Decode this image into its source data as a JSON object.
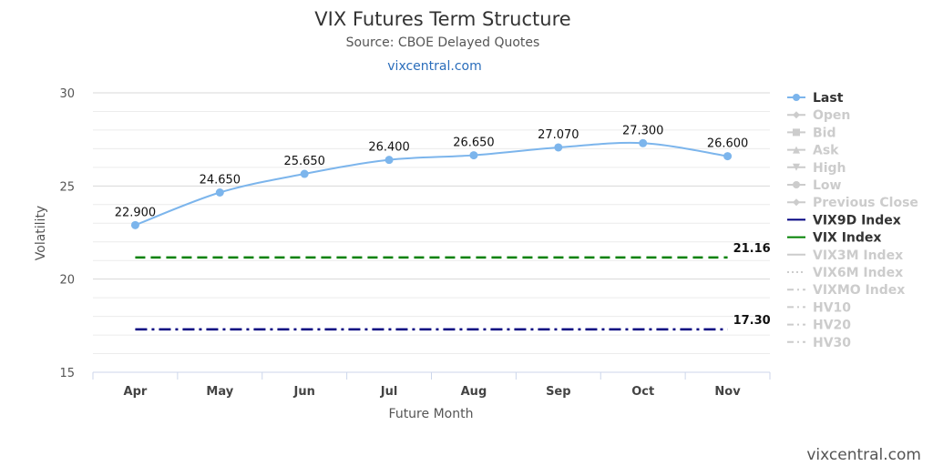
{
  "header": {
    "title": "VIX Futures Term Structure",
    "subtitle": "Source: CBOE Delayed Quotes",
    "link": "vixcentral.com"
  },
  "credits": "vixcentral.com",
  "colors": {
    "last": "#7cb5ec",
    "vix9d": "#000080",
    "vix": "#008000",
    "inactive": "#cccccc",
    "grid": "#e6e6e6"
  },
  "chart_data": {
    "type": "line",
    "title": "VIX Futures Term Structure",
    "subtitle": "Source: CBOE Delayed Quotes",
    "xlabel": "Future Month",
    "ylabel": "Volatility",
    "ylim": [
      15,
      30
    ],
    "yticks": [
      15,
      20,
      25,
      30
    ],
    "grid": true,
    "legend_position": "right",
    "categories": [
      "Apr",
      "May",
      "Jun",
      "Jul",
      "Aug",
      "Sep",
      "Oct",
      "Nov"
    ],
    "series": [
      {
        "name": "Last",
        "values": [
          22.9,
          24.65,
          25.65,
          26.4,
          26.65,
          27.07,
          27.3,
          26.6
        ],
        "labels": [
          "22.900",
          "24.650",
          "25.650",
          "26.400",
          "26.650",
          "27.070",
          "27.300",
          "26.600"
        ]
      },
      {
        "name": "VIX9D Index",
        "values": [
          17.3,
          17.3,
          17.3,
          17.3,
          17.3,
          17.3,
          17.3,
          17.3
        ],
        "end_label": "17.30"
      },
      {
        "name": "VIX Index",
        "values": [
          21.16,
          21.16,
          21.16,
          21.16,
          21.16,
          21.16,
          21.16,
          21.16
        ],
        "end_label": "21.16"
      }
    ],
    "legend": [
      {
        "label": "Last",
        "active": true,
        "symbol": "circle",
        "color": "#7cb5ec"
      },
      {
        "label": "Open",
        "active": false,
        "symbol": "diamond"
      },
      {
        "label": "Bid",
        "active": false,
        "symbol": "square"
      },
      {
        "label": "Ask",
        "active": false,
        "symbol": "triangle"
      },
      {
        "label": "High",
        "active": false,
        "symbol": "triangle-down"
      },
      {
        "label": "Low",
        "active": false,
        "symbol": "circle"
      },
      {
        "label": "Previous Close",
        "active": false,
        "symbol": "diamond"
      },
      {
        "label": "VIX9D Index",
        "active": true,
        "symbol": "line",
        "color": "#000080"
      },
      {
        "label": "VIX Index",
        "active": true,
        "symbol": "line",
        "color": "#008000"
      },
      {
        "label": "VIX3M Index",
        "active": false,
        "symbol": "line"
      },
      {
        "label": "VIX6M Index",
        "active": false,
        "symbol": "dotted"
      },
      {
        "label": "VIXMO Index",
        "active": false,
        "symbol": "dash-dot"
      },
      {
        "label": "HV10",
        "active": false,
        "symbol": "dash-dot"
      },
      {
        "label": "HV20",
        "active": false,
        "symbol": "dash-dot"
      },
      {
        "label": "HV30",
        "active": false,
        "symbol": "dash-dot"
      }
    ]
  }
}
